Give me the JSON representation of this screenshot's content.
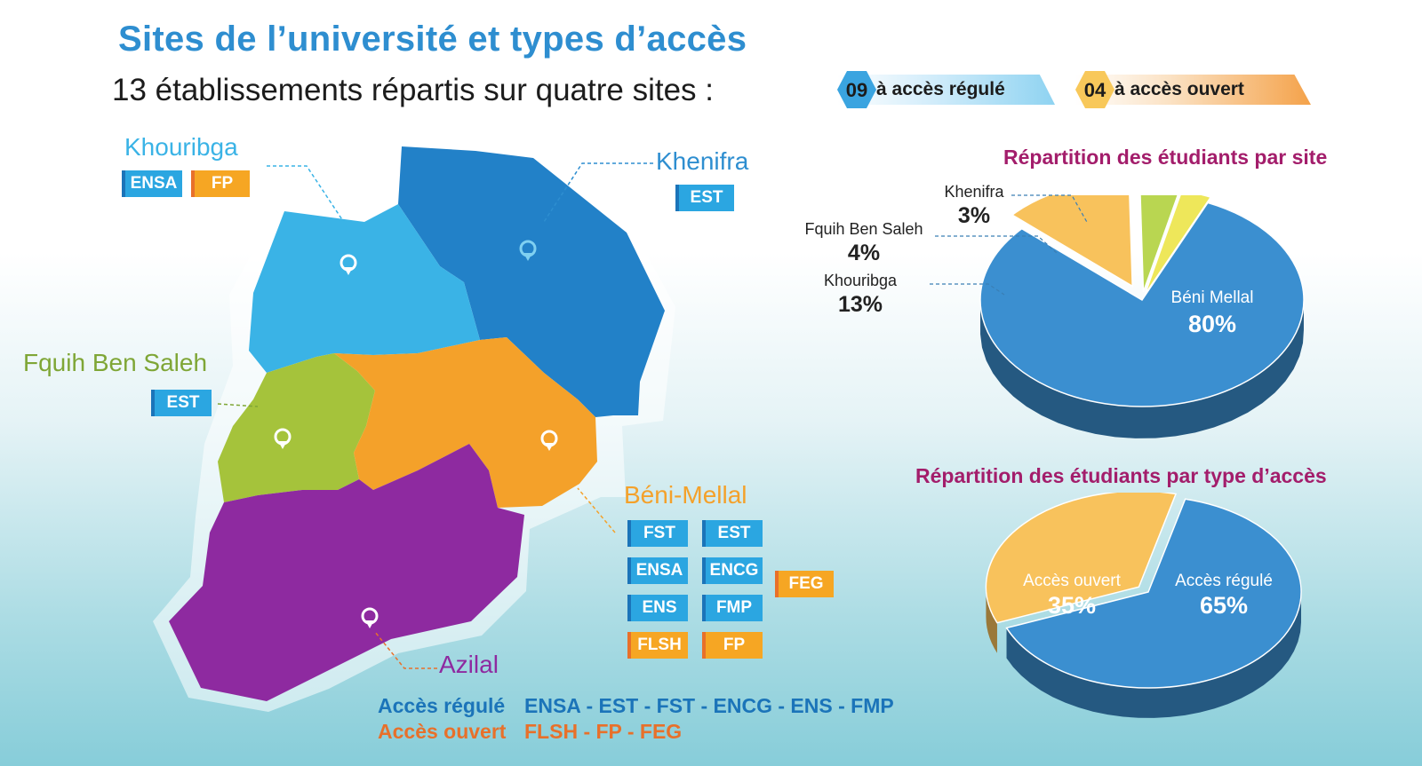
{
  "header": {
    "title": "Sites de l’université et types d’accès",
    "subtitle": "13 établissements répartis sur quatre sites :"
  },
  "access_badges": [
    {
      "count": "09",
      "label": "à accès régulé",
      "color": "#8fd3f1",
      "hex_color": "#3aa4e0"
    },
    {
      "count": "04",
      "label": "à accès ouvert",
      "color": "#f4a24a",
      "hex_color": "#f8c85a"
    }
  ],
  "map": {
    "regions": [
      {
        "name": "Khouribga",
        "color": "#3ab3e6"
      },
      {
        "name": "Khenifra",
        "color": "#2281c8"
      },
      {
        "name": "Fquih Ben Saleh",
        "color": "#a5c33b"
      },
      {
        "name": "Béni-Mellal",
        "color": "#f4a12a"
      },
      {
        "name": "Azilal",
        "color": "#8e2aa0"
      }
    ],
    "sites": {
      "khouribga": {
        "name": "Khouribga",
        "color": "#3ab3e6",
        "tags": [
          {
            "text": "ENSA",
            "type": "blue"
          },
          {
            "text": "FP",
            "type": "orange"
          }
        ]
      },
      "khenifra": {
        "name": "Khenifra",
        "color": "#2e8ed0",
        "tags": [
          {
            "text": "EST",
            "type": "blue"
          }
        ]
      },
      "fbs": {
        "name": "Fquih Ben Saleh",
        "color": "#7fa636",
        "tags": [
          {
            "text": "EST",
            "type": "blue"
          }
        ]
      },
      "beni": {
        "name": "Béni-Mellal",
        "color": "#f4a12a",
        "tags": [
          {
            "text": "FST",
            "type": "blue"
          },
          {
            "text": "EST",
            "type": "blue"
          },
          {
            "text": "ENSA",
            "type": "blue"
          },
          {
            "text": "ENCG",
            "type": "blue"
          },
          {
            "text": "ENS",
            "type": "blue"
          },
          {
            "text": "FMP",
            "type": "blue"
          },
          {
            "text": "FLSH",
            "type": "orange"
          },
          {
            "text": "FP",
            "type": "orange"
          },
          {
            "text": "FEG",
            "type": "orange"
          }
        ]
      },
      "azilal": {
        "name": "Azilal",
        "color": "#8e2aa0",
        "tags": []
      }
    }
  },
  "legend": {
    "regule_label": "Accès régulé",
    "regule_list": "ENSA - EST - FST - ENCG - ENS - FMP",
    "regule_color": "#1b74b9",
    "ouvert_label": "Accès ouvert",
    "ouvert_list": "FLSH - FP - FEG",
    "ouvert_color": "#e8702a"
  },
  "chart_data": [
    {
      "type": "pie",
      "title": "Répartition des étudiants par site",
      "categories": [
        "Béni Mellal",
        "Khouribga",
        "Fquih Ben Saleh",
        "Khenifra"
      ],
      "values": [
        80,
        13,
        4,
        3
      ],
      "value_labels": [
        "80%",
        "13%",
        "4%",
        "3%"
      ],
      "colors": [
        "#3b8fd0",
        "#f8c25c",
        "#b9d651",
        "#eee75a"
      ]
    },
    {
      "type": "pie",
      "title": "Répartition des étudiants par type d’accès",
      "categories": [
        "Accès régulé",
        "Accès ouvert"
      ],
      "values": [
        65,
        35
      ],
      "value_labels": [
        "65%",
        "35%"
      ],
      "colors": [
        "#3b8fd0",
        "#f8c25c"
      ]
    }
  ]
}
